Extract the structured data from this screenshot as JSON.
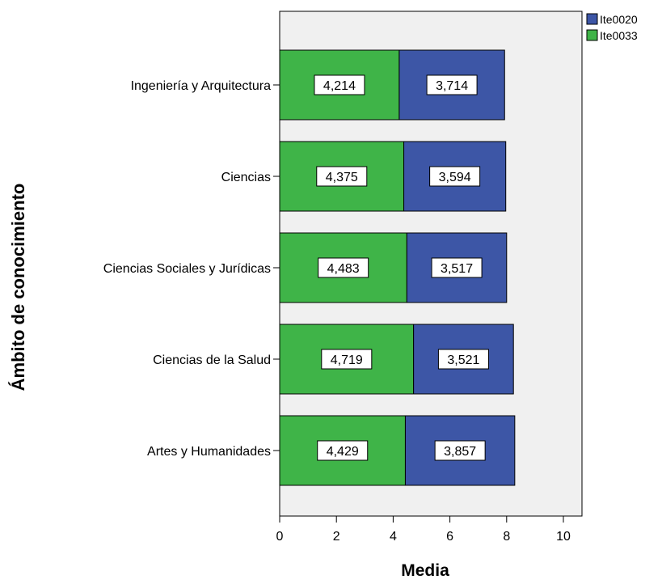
{
  "chart_data": {
    "type": "bar",
    "orientation": "horizontal",
    "stacked": true,
    "categories": [
      "Ingeniería y Arquitectura",
      "Ciencias",
      "Ciencias Sociales y Jurídicas",
      "Ciencias de la Salud",
      "Artes y Humanidades"
    ],
    "series": [
      {
        "name": "Ite0033",
        "color": "#3fb448",
        "values": [
          4.214,
          4.375,
          4.483,
          4.719,
          4.429
        ],
        "labels": [
          "4,214",
          "4,375",
          "4,483",
          "4,719",
          "4,429"
        ]
      },
      {
        "name": "Ite0020",
        "color": "#3d56a6",
        "values": [
          3.714,
          3.594,
          3.517,
          3.521,
          3.857
        ],
        "labels": [
          "3,714",
          "3,594",
          "3,517",
          "3,521",
          "3,857"
        ]
      }
    ],
    "legend_order": [
      "Ite0020",
      "Ite0033"
    ],
    "legend_position": "top-right",
    "xlabel": "Media",
    "ylabel": "Ámbito de conocimiento",
    "xlim": [
      0,
      10
    ],
    "xticks": [
      0,
      2,
      4,
      6,
      8,
      10
    ],
    "grid": false,
    "plot_background": "#f0f0f0"
  }
}
